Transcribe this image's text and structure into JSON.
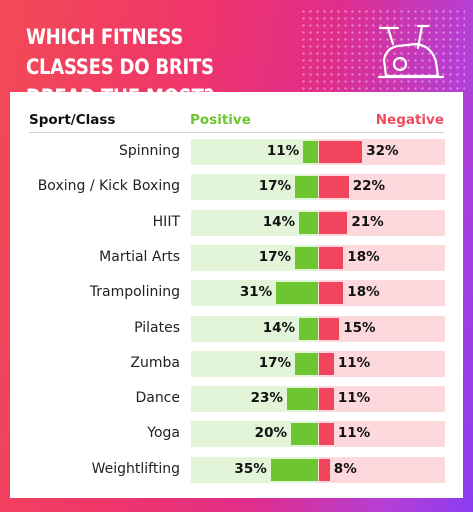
{
  "title": "WHICH FITNESS CLASSES DO BRITS DREAD THE MOST?",
  "icon": "exercise-bike-icon",
  "colors": {
    "positive": "#6dc62f",
    "negative": "#f0455c",
    "positive_track": "#e2f5d8",
    "negative_track": "#fdd9de",
    "frame_gradient": [
      "#f24a55",
      "#e02d8a",
      "#8b3cf0"
    ]
  },
  "headers": {
    "sport": "Sport/Class",
    "positive": "Positive",
    "negative": "Negative"
  },
  "chart_data": {
    "type": "bar",
    "title": "WHICH FITNESS CLASSES DO BRITS DREAD THE MOST?",
    "orientation": "horizontal-diverging",
    "categories": [
      "Spinning",
      "Boxing / Kick Boxing",
      "HIIT",
      "Martial Arts",
      "Trampolining",
      "Pilates",
      "Zumba",
      "Dance",
      "Yoga",
      "Weightlifting"
    ],
    "series": [
      {
        "name": "Positive",
        "values": [
          11,
          17,
          14,
          17,
          31,
          14,
          17,
          23,
          20,
          35
        ]
      },
      {
        "name": "Negative",
        "values": [
          32,
          22,
          21,
          18,
          18,
          15,
          11,
          11,
          11,
          8
        ]
      }
    ],
    "value_labels": {
      "Positive": [
        "11%",
        "17%",
        "14%",
        "17%",
        "31%",
        "14%",
        "17%",
        "23%",
        "20%",
        "35%"
      ],
      "Negative": [
        "32%",
        "22%",
        "21%",
        "18%",
        "18%",
        "15%",
        "11%",
        "11%",
        "11%",
        "8%"
      ]
    },
    "unit": "%",
    "xlim": [
      0,
      100
    ],
    "grid": false,
    "legend": "top"
  }
}
